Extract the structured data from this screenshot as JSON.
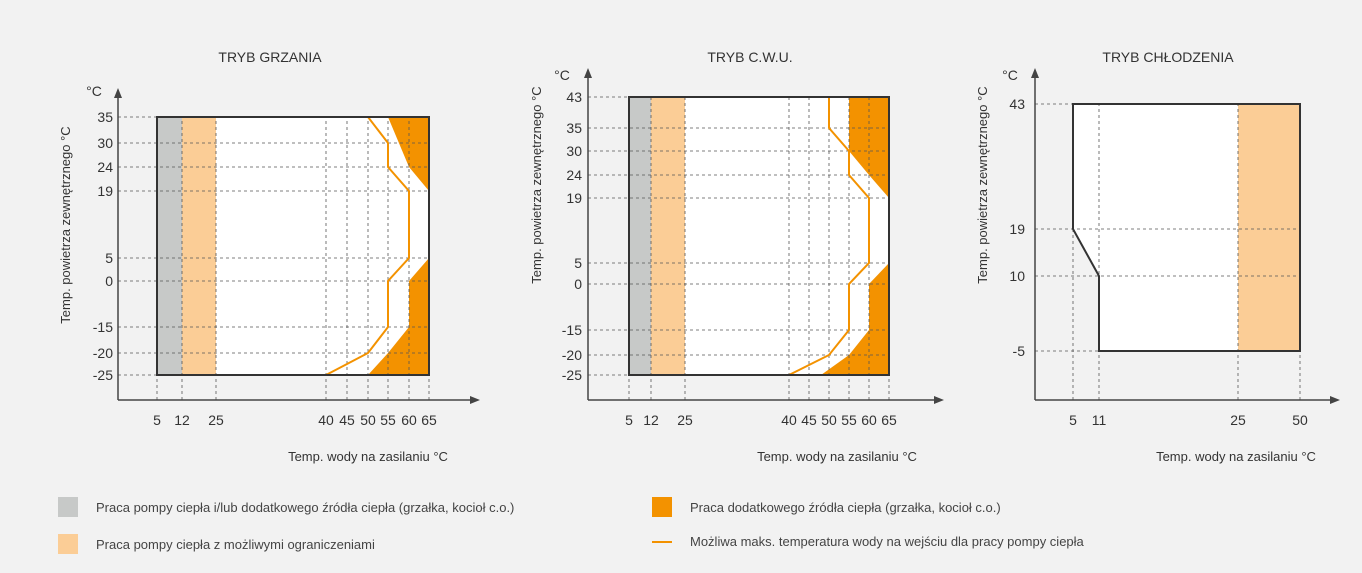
{
  "colors": {
    "gray": "#c7c9c8",
    "light_orange": "#fbcd96",
    "orange": "#f39200",
    "line": "#f39200",
    "axis": "#444444",
    "box": "#333333"
  },
  "chart_data": [
    {
      "id": "heating",
      "type": "area",
      "title": "TRYB GRZANIA",
      "xlabel": "Temp. wody na zasilaniu °C",
      "ylabel": "Temp. powietrza zewnętrznego °C",
      "yunit": "°C",
      "x_ticks": [
        5,
        12,
        25,
        40,
        45,
        50,
        55,
        60,
        65
      ],
      "y_ticks": [
        -25,
        -20,
        -15,
        0,
        5,
        19,
        24,
        30,
        35
      ],
      "x_range": [
        5,
        65
      ],
      "y_range": [
        -25,
        35
      ],
      "regions": [
        {
          "legend": "gray",
          "polygon": [
            [
              5,
              -25
            ],
            [
              12,
              -25
            ],
            [
              12,
              35
            ],
            [
              5,
              35
            ]
          ]
        },
        {
          "legend": "light_orange",
          "polygon": [
            [
              12,
              -25
            ],
            [
              25,
              -25
            ],
            [
              25,
              35
            ],
            [
              12,
              35
            ]
          ]
        },
        {
          "legend": "orange",
          "polygon": [
            [
              60,
              35
            ],
            [
              65,
              35
            ],
            [
              65,
              19
            ],
            [
              60,
              24
            ],
            [
              55,
              35
            ]
          ]
        },
        {
          "legend": "orange",
          "polygon": [
            [
              65,
              5
            ],
            [
              60,
              0
            ],
            [
              60,
              -15
            ],
            [
              55,
              -20
            ],
            [
              50,
              -25
            ],
            [
              65,
              -25
            ]
          ]
        }
      ],
      "max_temp_line": [
        [
          50,
          35
        ],
        [
          55,
          30
        ],
        [
          55,
          24
        ],
        [
          60,
          19
        ],
        [
          60,
          5
        ],
        [
          55,
          0
        ],
        [
          55,
          -15
        ],
        [
          50,
          -20
        ],
        [
          40,
          -25
        ]
      ]
    },
    {
      "id": "dhw",
      "type": "area",
      "title": "TRYB C.W.U.",
      "xlabel": "Temp. wody na zasilaniu °C",
      "ylabel": "Temp. powietrza zewnętrznego °C",
      "yunit": "°C",
      "x_ticks": [
        5,
        12,
        25,
        40,
        45,
        50,
        55,
        60,
        65
      ],
      "y_ticks": [
        -25,
        -20,
        -15,
        0,
        5,
        19,
        24,
        30,
        35,
        43
      ],
      "x_range": [
        5,
        65
      ],
      "y_range": [
        -25,
        43
      ],
      "regions": [
        {
          "legend": "gray",
          "polygon": [
            [
              5,
              -25
            ],
            [
              12,
              -25
            ],
            [
              12,
              43
            ],
            [
              5,
              43
            ]
          ]
        },
        {
          "legend": "light_orange",
          "polygon": [
            [
              12,
              -25
            ],
            [
              25,
              -25
            ],
            [
              25,
              43
            ],
            [
              12,
              43
            ]
          ]
        },
        {
          "legend": "orange",
          "polygon": [
            [
              55,
              43
            ],
            [
              65,
              43
            ],
            [
              65,
              19
            ],
            [
              60,
              24
            ],
            [
              55,
              30
            ]
          ]
        },
        {
          "legend": "orange",
          "polygon": [
            [
              65,
              5
            ],
            [
              60,
              0
            ],
            [
              60,
              -15
            ],
            [
              55,
              -20
            ],
            [
              48,
              -25
            ],
            [
              65,
              -25
            ]
          ]
        }
      ],
      "max_temp_line": [
        [
          50,
          43
        ],
        [
          50,
          35
        ],
        [
          55,
          30
        ],
        [
          55,
          24
        ],
        [
          60,
          19
        ],
        [
          60,
          5
        ],
        [
          55,
          0
        ],
        [
          55,
          -15
        ],
        [
          50,
          -20
        ],
        [
          40,
          -25
        ]
      ]
    },
    {
      "id": "cooling",
      "type": "area",
      "title": "TRYB CHŁODZENIA",
      "xlabel": "Temp. wody na zasilaniu °C",
      "ylabel": "Temp. powietrza zewnętrznego °C",
      "yunit": "°C",
      "x_ticks": [
        5,
        11,
        25,
        50
      ],
      "y_ticks": [
        -5,
        10,
        19,
        43
      ],
      "x_range": [
        5,
        50
      ],
      "y_range": [
        -5,
        43
      ],
      "regions": [
        {
          "legend": "light_orange",
          "polygon": [
            [
              25,
              -5
            ],
            [
              50,
              -5
            ],
            [
              50,
              43
            ],
            [
              25,
              43
            ]
          ]
        }
      ],
      "envelope": [
        [
          5,
          43
        ],
        [
          50,
          43
        ],
        [
          50,
          -5
        ],
        [
          11,
          -5
        ],
        [
          11,
          10
        ],
        [
          5,
          19
        ]
      ]
    }
  ],
  "legend": [
    {
      "key": "gray",
      "label": "Praca pompy ciepła i/lub dodatkowego źródła ciepła (grzałka, kocioł c.o.)"
    },
    {
      "key": "orange",
      "label": "Praca dodatkowego źródła ciepła (grzałka, kocioł c.o.)"
    },
    {
      "key": "light_orange",
      "label": "Praca pompy ciepła z możliwymi ograniczeniami"
    },
    {
      "key": "line",
      "label": "Możliwa maks. temperatura wody na wejściu dla pracy pompy ciepła"
    }
  ]
}
